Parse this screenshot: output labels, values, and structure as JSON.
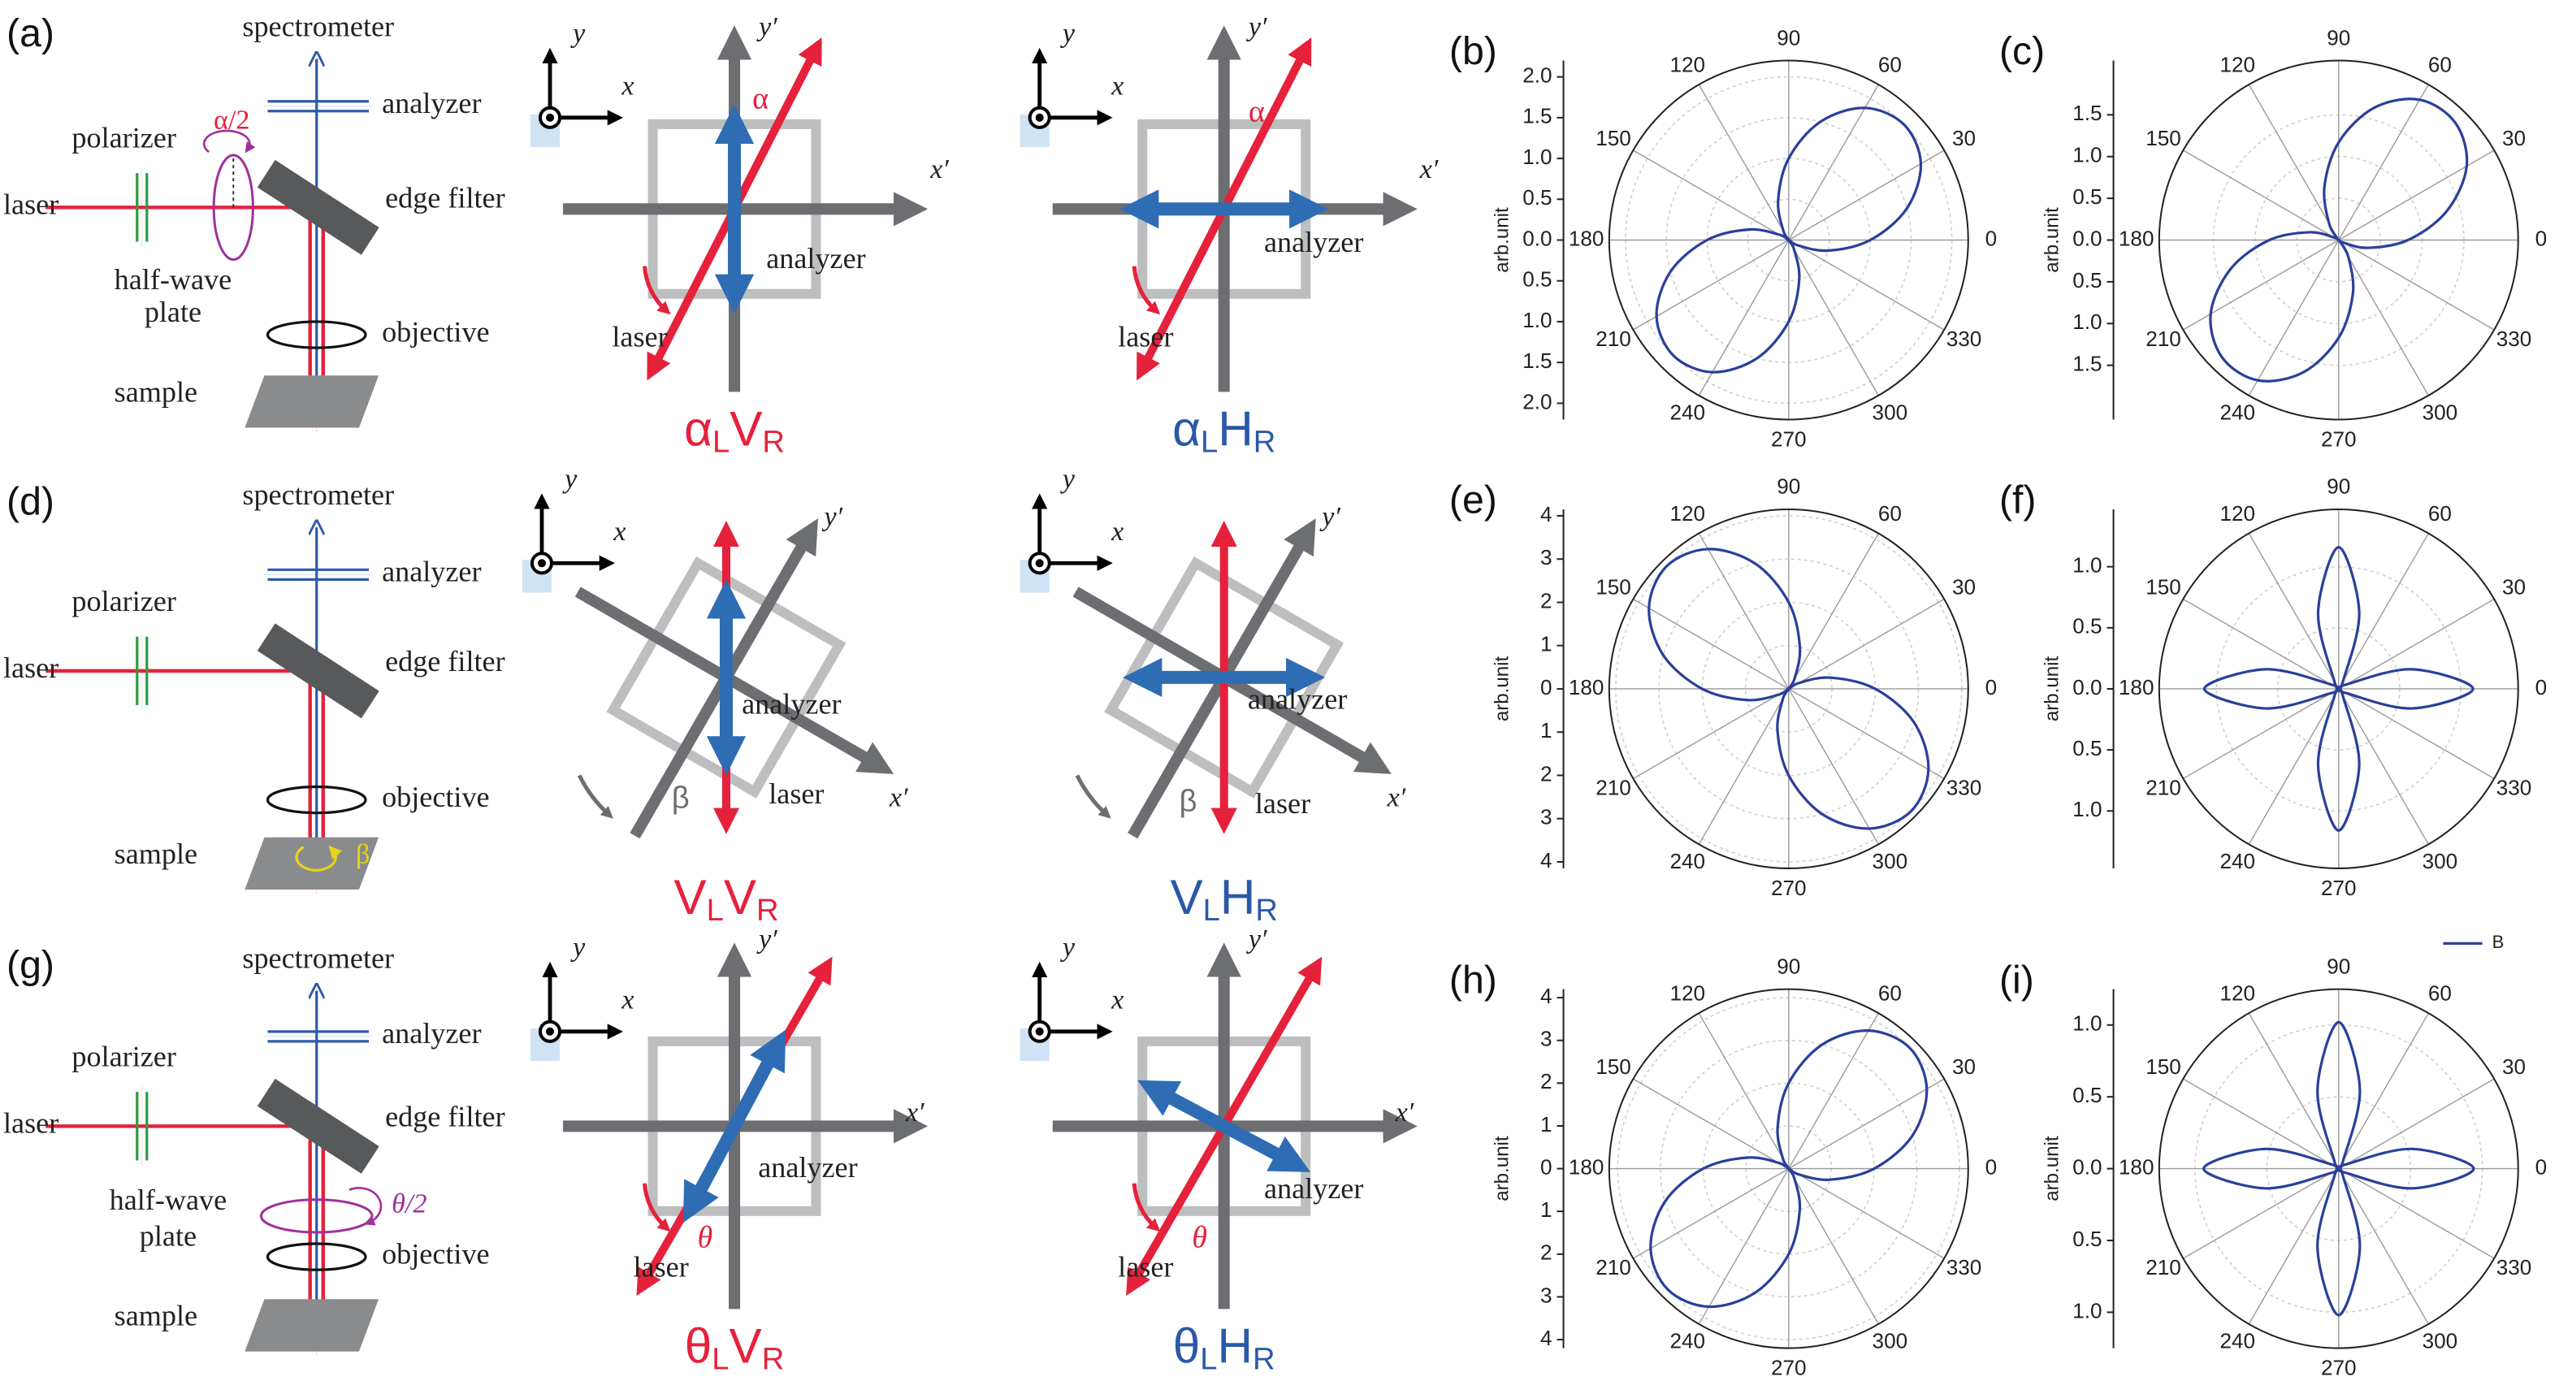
{
  "setups": [
    {
      "label": "(a)",
      "spectrometer": "spectrometer",
      "analyzer": "analyzer",
      "polarizer": "polarizer",
      "laser": "laser",
      "edge_filter": "edge filter",
      "waveplate": [
        "half-wave",
        "plate"
      ],
      "waveplate_angle": "α/2",
      "objective": "objective",
      "sample": "sample"
    },
    {
      "label": "(d)",
      "spectrometer": "spectrometer",
      "analyzer": "analyzer",
      "polarizer": "polarizer",
      "laser": "laser",
      "edge_filter": "edge filter",
      "objective": "objective",
      "sample": "sample",
      "sample_angle": "β"
    },
    {
      "label": "(g)",
      "spectrometer": "spectrometer",
      "analyzer": "analyzer",
      "polarizer": "polarizer",
      "laser": "laser",
      "edge_filter": "edge filter",
      "waveplate": [
        "half-wave",
        "plate"
      ],
      "waveplate_angle": "θ/2",
      "objective": "objective",
      "sample": "sample"
    }
  ],
  "schemes": [
    {
      "y": "y",
      "x": "x",
      "y_prime": "y′",
      "x_prime": "x′",
      "angle": "α",
      "analyzer": "analyzer",
      "laser": "laser",
      "caption": [
        "α",
        "L",
        "V",
        "R"
      ],
      "caption_color": "#e5213c"
    },
    {
      "y": "y",
      "x": "x",
      "y_prime": "y′",
      "x_prime": "x′",
      "angle": "α",
      "analyzer": "analyzer",
      "laser": "laser",
      "caption": [
        "α",
        "L",
        "H",
        "R"
      ],
      "caption_color": "#2a59a8"
    },
    {
      "y": "y",
      "x": "x",
      "y_prime": "y′",
      "x_prime": "x′",
      "angle": "β",
      "analyzer": "analyzer",
      "laser": "laser",
      "caption": [
        "V",
        "L",
        "V",
        "R"
      ],
      "caption_color": "#e5213c"
    },
    {
      "y": "y",
      "x": "x",
      "y_prime": "y′",
      "x_prime": "x′",
      "angle": "β",
      "analyzer": "analyzer",
      "laser": "laser",
      "caption": [
        "V",
        "L",
        "H",
        "R"
      ],
      "caption_color": "#2a59a8"
    },
    {
      "y": "y",
      "x": "x",
      "y_prime": "y′",
      "x_prime": "x′",
      "angle": "θ",
      "analyzer": "analyzer",
      "laser": "laser",
      "caption": [
        "θ",
        "L",
        "V",
        "R"
      ],
      "caption_color": "#e5213c"
    },
    {
      "y": "y",
      "x": "x",
      "y_prime": "y′",
      "x_prime": "x′",
      "angle": "θ",
      "analyzer": "analyzer",
      "laser": "laser",
      "caption": [
        "θ",
        "L",
        "H",
        "R"
      ],
      "caption_color": "#2a59a8"
    }
  ],
  "chart_data": [
    {
      "type": "polar",
      "label": "(b)",
      "ylabel": "arb.unit",
      "x": [
        0,
        15,
        30,
        45,
        60,
        75,
        90,
        105,
        120,
        135,
        150,
        165,
        180,
        195,
        210,
        225,
        240,
        255,
        270,
        285,
        300,
        315,
        330,
        345
      ],
      "thetaticks": [
        0,
        30,
        60,
        90,
        120,
        150,
        180,
        210,
        240,
        270,
        300,
        330
      ],
      "rlim": [
        0,
        2.2
      ],
      "rticks": [
        {
          "value": 0,
          "label": "0.0"
        },
        {
          "value": 0.5,
          "label": "0.5"
        },
        {
          "value": 1,
          "label": "1.0"
        },
        {
          "value": 1.5,
          "label": "1.5"
        },
        {
          "value": 2,
          "label": "2.0"
        }
      ],
      "grid": true,
      "series": [
        {
          "color": "#2b3f9a",
          "values": [
            1.0,
            1.5,
            1.87,
            2.0,
            1.87,
            1.5,
            1.0,
            0.5,
            0.13,
            0,
            0.13,
            0.5,
            1.0,
            1.5,
            1.87,
            2.0,
            1.87,
            1.5,
            1.0,
            0.5,
            0.13,
            0,
            0.13,
            0.5
          ]
        }
      ]
    },
    {
      "type": "polar",
      "label": "(c)",
      "ylabel": "arb.unit",
      "x": [
        0,
        15,
        30,
        45,
        60,
        75,
        90,
        105,
        120,
        135,
        150,
        165,
        180,
        195,
        210,
        225,
        240,
        255,
        270,
        285,
        300,
        315,
        330,
        345
      ],
      "thetaticks": [
        0,
        30,
        60,
        90,
        120,
        150,
        180,
        210,
        240,
        270,
        300,
        330
      ],
      "rlim": [
        0,
        2.15
      ],
      "rticks": [
        {
          "value": 0,
          "label": "0.0"
        },
        {
          "value": 0.5,
          "label": "0.5"
        },
        {
          "value": 1,
          "label": "1.0"
        },
        {
          "value": 1.5,
          "label": "1.5"
        }
      ],
      "grid": true,
      "series": [
        {
          "color": "#2b3f9a",
          "values": [
            0.83,
            1.34,
            1.77,
            1.98,
            1.94,
            1.64,
            1.17,
            0.66,
            0.23,
            0.02,
            0.06,
            0.36,
            0.83,
            1.34,
            1.77,
            1.98,
            1.94,
            1.64,
            1.17,
            0.66,
            0.23,
            0.02,
            0.06,
            0.36
          ]
        }
      ]
    },
    {
      "type": "polar",
      "label": "(e)",
      "ylabel": "arb.unit",
      "x": [
        0,
        15,
        30,
        45,
        60,
        75,
        90,
        105,
        120,
        135,
        150,
        165,
        180,
        195,
        210,
        225,
        240,
        255,
        270,
        285,
        300,
        315,
        330,
        345
      ],
      "thetaticks": [
        0,
        30,
        60,
        90,
        120,
        150,
        180,
        210,
        240,
        270,
        300,
        330
      ],
      "rlim": [
        0,
        4.15
      ],
      "rticks": [
        0,
        1,
        2,
        3,
        4
      ],
      "grid": true,
      "series": [
        {
          "color": "#2b3f9a",
          "values": [
            2.0,
            1.0,
            0.27,
            0,
            0.27,
            1.0,
            2.0,
            3.0,
            3.73,
            4.0,
            3.73,
            3.0,
            2.0,
            1.0,
            0.27,
            0,
            0.27,
            1.0,
            2.0,
            3.0,
            3.73,
            4.0,
            3.73,
            3.0
          ]
        }
      ]
    },
    {
      "type": "polar",
      "label": "(f)",
      "ylabel": "arb.unit",
      "x": [
        0,
        15,
        30,
        45,
        60,
        75,
        90,
        105,
        120,
        135,
        150,
        165,
        180,
        195,
        210,
        225,
        240,
        255,
        270,
        285,
        300,
        315,
        330,
        345
      ],
      "thetaticks": [
        0,
        30,
        60,
        90,
        120,
        150,
        180,
        210,
        240,
        270,
        300,
        330
      ],
      "rlim": [
        0,
        1.47
      ],
      "rticks": [
        {
          "value": 0,
          "label": "0.0"
        },
        {
          "value": 0.5,
          "label": "0.5"
        },
        {
          "value": 1,
          "label": "1.0"
        }
      ],
      "grid": true,
      "series": [
        {
          "color": "#2b3f9a",
          "values": [
            1.1,
            0.62,
            0.07,
            0,
            0.07,
            0.65,
            1.16,
            0.65,
            0.07,
            0,
            0.07,
            0.62,
            1.1,
            0.62,
            0.07,
            0,
            0.07,
            0.65,
            1.16,
            0.65,
            0.07,
            0,
            0.07,
            0.62
          ]
        }
      ]
    },
    {
      "type": "polar",
      "label": "(h)",
      "ylabel": "arb.unit",
      "x": [
        0,
        15,
        30,
        45,
        60,
        75,
        90,
        105,
        120,
        135,
        150,
        165,
        180,
        195,
        210,
        225,
        240,
        255,
        270,
        285,
        300,
        315,
        330,
        345
      ],
      "thetaticks": [
        0,
        30,
        60,
        90,
        120,
        150,
        180,
        210,
        240,
        270,
        300,
        330
      ],
      "rlim": [
        0,
        4.2
      ],
      "rticks": [
        0,
        1,
        2,
        3,
        4
      ],
      "grid": true,
      "series": [
        {
          "color": "#2b3f9a",
          "values": [
            2.0,
            3.0,
            3.73,
            4.0,
            3.73,
            3.0,
            2.0,
            1.0,
            0.27,
            0,
            0.27,
            1.0,
            2.0,
            3.0,
            3.73,
            4.0,
            3.73,
            3.0,
            2.0,
            1.0,
            0.27,
            0,
            0.27,
            1.0
          ]
        }
      ]
    },
    {
      "type": "polar",
      "label": "(i)",
      "ylabel": "arb.unit",
      "x": [
        0,
        15,
        30,
        45,
        60,
        75,
        90,
        105,
        120,
        135,
        150,
        165,
        180,
        195,
        210,
        225,
        240,
        255,
        270,
        285,
        300,
        315,
        330,
        345
      ],
      "thetaticks": [
        0,
        30,
        60,
        90,
        120,
        150,
        180,
        210,
        240,
        270,
        300,
        330
      ],
      "rlim": [
        0,
        1.25
      ],
      "rticks": [
        {
          "value": 0,
          "label": "0.0"
        },
        {
          "value": 0.5,
          "label": "0.5"
        },
        {
          "value": 1,
          "label": "1.0"
        }
      ],
      "grid": true,
      "legend": "upper right",
      "series": [
        {
          "name": "B",
          "color": "#2b3f9a",
          "values": [
            0.94,
            0.53,
            0.06,
            0,
            0.06,
            0.57,
            1.02,
            0.57,
            0.06,
            0,
            0.06,
            0.53,
            0.94,
            0.53,
            0.06,
            0,
            0.06,
            0.57,
            1.02,
            0.57,
            0.06,
            0,
            0.06,
            0.53
          ]
        }
      ]
    }
  ]
}
